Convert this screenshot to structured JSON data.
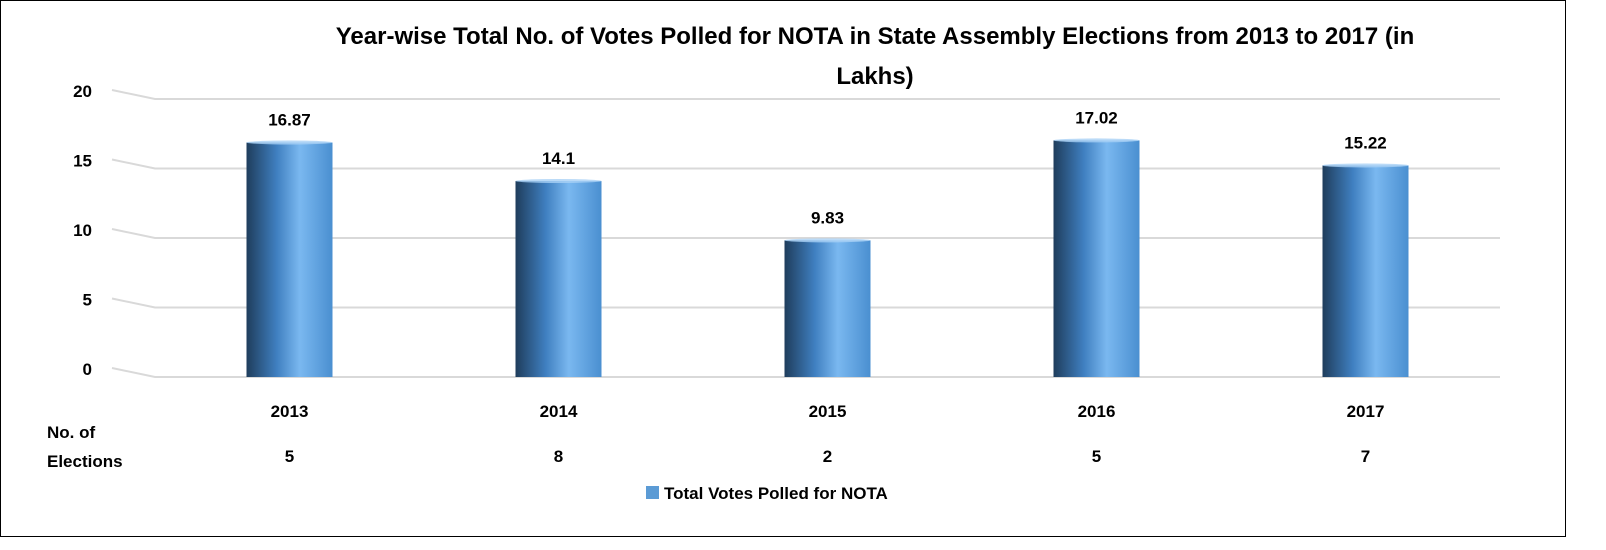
{
  "chart_data": {
    "type": "bar",
    "title": "Year-wise Total No. of Votes Polled for NOTA in State Assembly Elections from 2013 to 2017 (in Lakhs)",
    "title_lines": [
      "Year-wise Total No. of Votes Polled for NOTA in State Assembly Elections from 2013 to 2017 (in",
      "Lakhs)"
    ],
    "categories": [
      "2013",
      "2014",
      "2015",
      "2016",
      "2017"
    ],
    "series": [
      {
        "name": "Total Votes Polled for NOTA",
        "values": [
          16.87,
          14.1,
          9.83,
          17.02,
          15.22
        ],
        "data_labels": [
          "16.87",
          "14.1",
          "9.83",
          "17.02",
          "15.22"
        ]
      }
    ],
    "ylim": [
      0,
      20
    ],
    "yticks": [
      0,
      5,
      10,
      15,
      20
    ],
    "grid": true,
    "legend_position": "bottom",
    "table_row": {
      "label_lines": [
        "No. of",
        "Elections"
      ],
      "values": [
        "5",
        "8",
        "2",
        "5",
        "7"
      ]
    },
    "colors": {
      "bar_dark": "#1f3d5c",
      "bar_mid": "#3f7fc0",
      "bar_light": "#7ab8f0",
      "legend_swatch": "#5b9bd5",
      "grid": "#d9d9d9"
    }
  }
}
